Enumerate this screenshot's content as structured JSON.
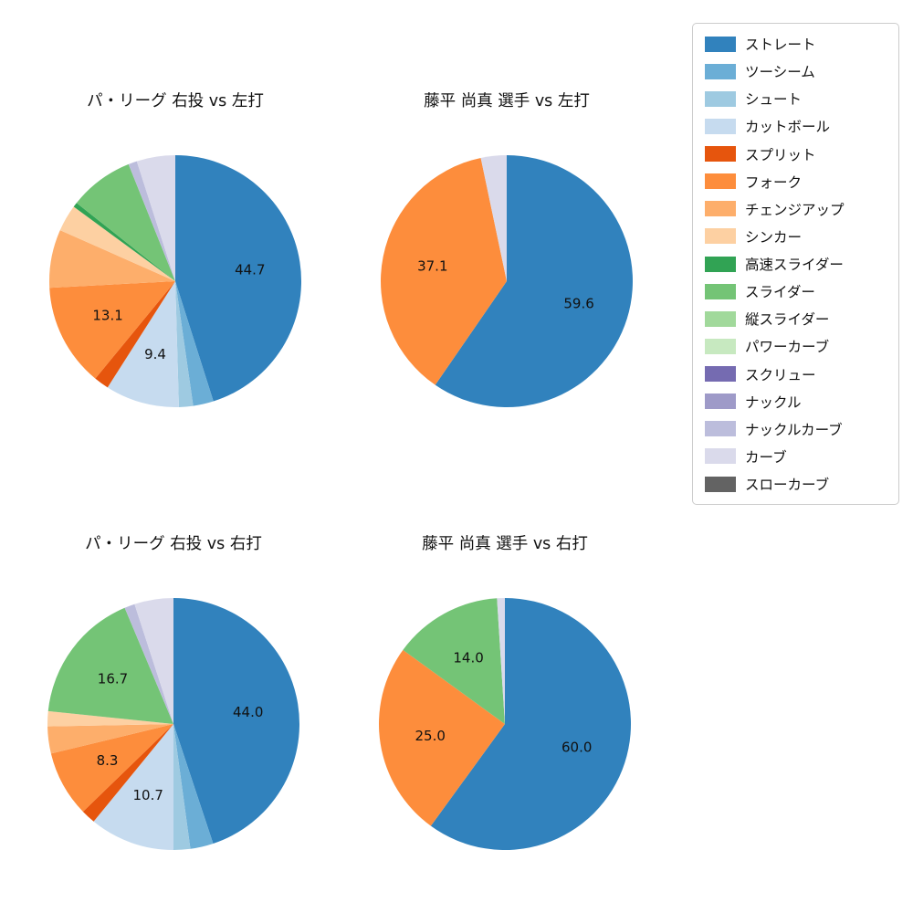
{
  "figure": {
    "background": "#ffffff"
  },
  "legend": {
    "entries": [
      {
        "label": "ストレート",
        "color": "#3182bd"
      },
      {
        "label": "ツーシーム",
        "color": "#6baed6"
      },
      {
        "label": "シュート",
        "color": "#9ecae1"
      },
      {
        "label": "カットボール",
        "color": "#c6dbef"
      },
      {
        "label": "スプリット",
        "color": "#e6550d"
      },
      {
        "label": "フォーク",
        "color": "#fd8d3c"
      },
      {
        "label": "チェンジアップ",
        "color": "#fdae6b"
      },
      {
        "label": "シンカー",
        "color": "#fdd0a2"
      },
      {
        "label": "高速スライダー",
        "color": "#31a354"
      },
      {
        "label": "スライダー",
        "color": "#74c476"
      },
      {
        "label": "縦スライダー",
        "color": "#a1d99b"
      },
      {
        "label": "パワーカーブ",
        "color": "#c7e9c0"
      },
      {
        "label": "スクリュー",
        "color": "#756bb1"
      },
      {
        "label": "ナックル",
        "color": "#9e9ac8"
      },
      {
        "label": "ナックルカーブ",
        "color": "#bcbddc"
      },
      {
        "label": "カーブ",
        "color": "#dadaeb"
      },
      {
        "label": "スローカーブ",
        "color": "#636363"
      }
    ]
  },
  "chart_data": [
    {
      "type": "pie",
      "title": "パ・リーグ 右投 vs 左打",
      "start_angle": "top",
      "direction": "clockwise",
      "slices": [
        {
          "label": "ストレート",
          "value": 44.7,
          "text": "44.7"
        },
        {
          "label": "ツーシーム",
          "value": 2.6,
          "text": ""
        },
        {
          "label": "シュート",
          "value": 1.8,
          "text": ""
        },
        {
          "label": "カットボール",
          "value": 9.4,
          "text": "9.4"
        },
        {
          "label": "スプリット",
          "value": 1.9,
          "text": ""
        },
        {
          "label": "フォーク",
          "value": 13.1,
          "text": "13.1"
        },
        {
          "label": "チェンジアップ",
          "value": 7.4,
          "text": ""
        },
        {
          "label": "シンカー",
          "value": 3.4,
          "text": ""
        },
        {
          "label": "高速スライダー",
          "value": 0.6,
          "text": ""
        },
        {
          "label": "スライダー",
          "value": 8.2,
          "text": ""
        },
        {
          "label": "ナックルカーブ",
          "value": 1.1,
          "text": ""
        },
        {
          "label": "カーブ",
          "value": 4.9,
          "text": ""
        }
      ]
    },
    {
      "type": "pie",
      "title": "藤平 尚真 選手 vs 左打",
      "start_angle": "top",
      "direction": "clockwise",
      "slices": [
        {
          "label": "ストレート",
          "value": 59.6,
          "text": "59.6"
        },
        {
          "label": "フォーク",
          "value": 37.1,
          "text": "37.1"
        },
        {
          "label": "カーブ",
          "value": 3.3,
          "text": ""
        }
      ]
    },
    {
      "type": "pie",
      "title": "パ・リーグ 右投 vs 右打",
      "start_angle": "top",
      "direction": "clockwise",
      "slices": [
        {
          "label": "ストレート",
          "value": 44.0,
          "text": "44.0"
        },
        {
          "label": "ツーシーム",
          "value": 2.9,
          "text": ""
        },
        {
          "label": "シュート",
          "value": 2.1,
          "text": ""
        },
        {
          "label": "カットボール",
          "value": 10.7,
          "text": "10.7"
        },
        {
          "label": "スプリット",
          "value": 1.8,
          "text": ""
        },
        {
          "label": "フォーク",
          "value": 8.3,
          "text": "8.3"
        },
        {
          "label": "チェンジアップ",
          "value": 3.4,
          "text": ""
        },
        {
          "label": "シンカー",
          "value": 1.9,
          "text": ""
        },
        {
          "label": "スライダー",
          "value": 16.7,
          "text": "16.7"
        },
        {
          "label": "ナックルカーブ",
          "value": 1.3,
          "text": ""
        },
        {
          "label": "カーブ",
          "value": 4.9,
          "text": ""
        }
      ]
    },
    {
      "type": "pie",
      "title": "藤平 尚真 選手 vs 右打",
      "start_angle": "top",
      "direction": "clockwise",
      "slices": [
        {
          "label": "ストレート",
          "value": 60.0,
          "text": "60.0"
        },
        {
          "label": "フォーク",
          "value": 25.0,
          "text": "25.0"
        },
        {
          "label": "スライダー",
          "value": 14.0,
          "text": "14.0"
        },
        {
          "label": "カーブ",
          "value": 1.0,
          "text": ""
        }
      ]
    }
  ]
}
